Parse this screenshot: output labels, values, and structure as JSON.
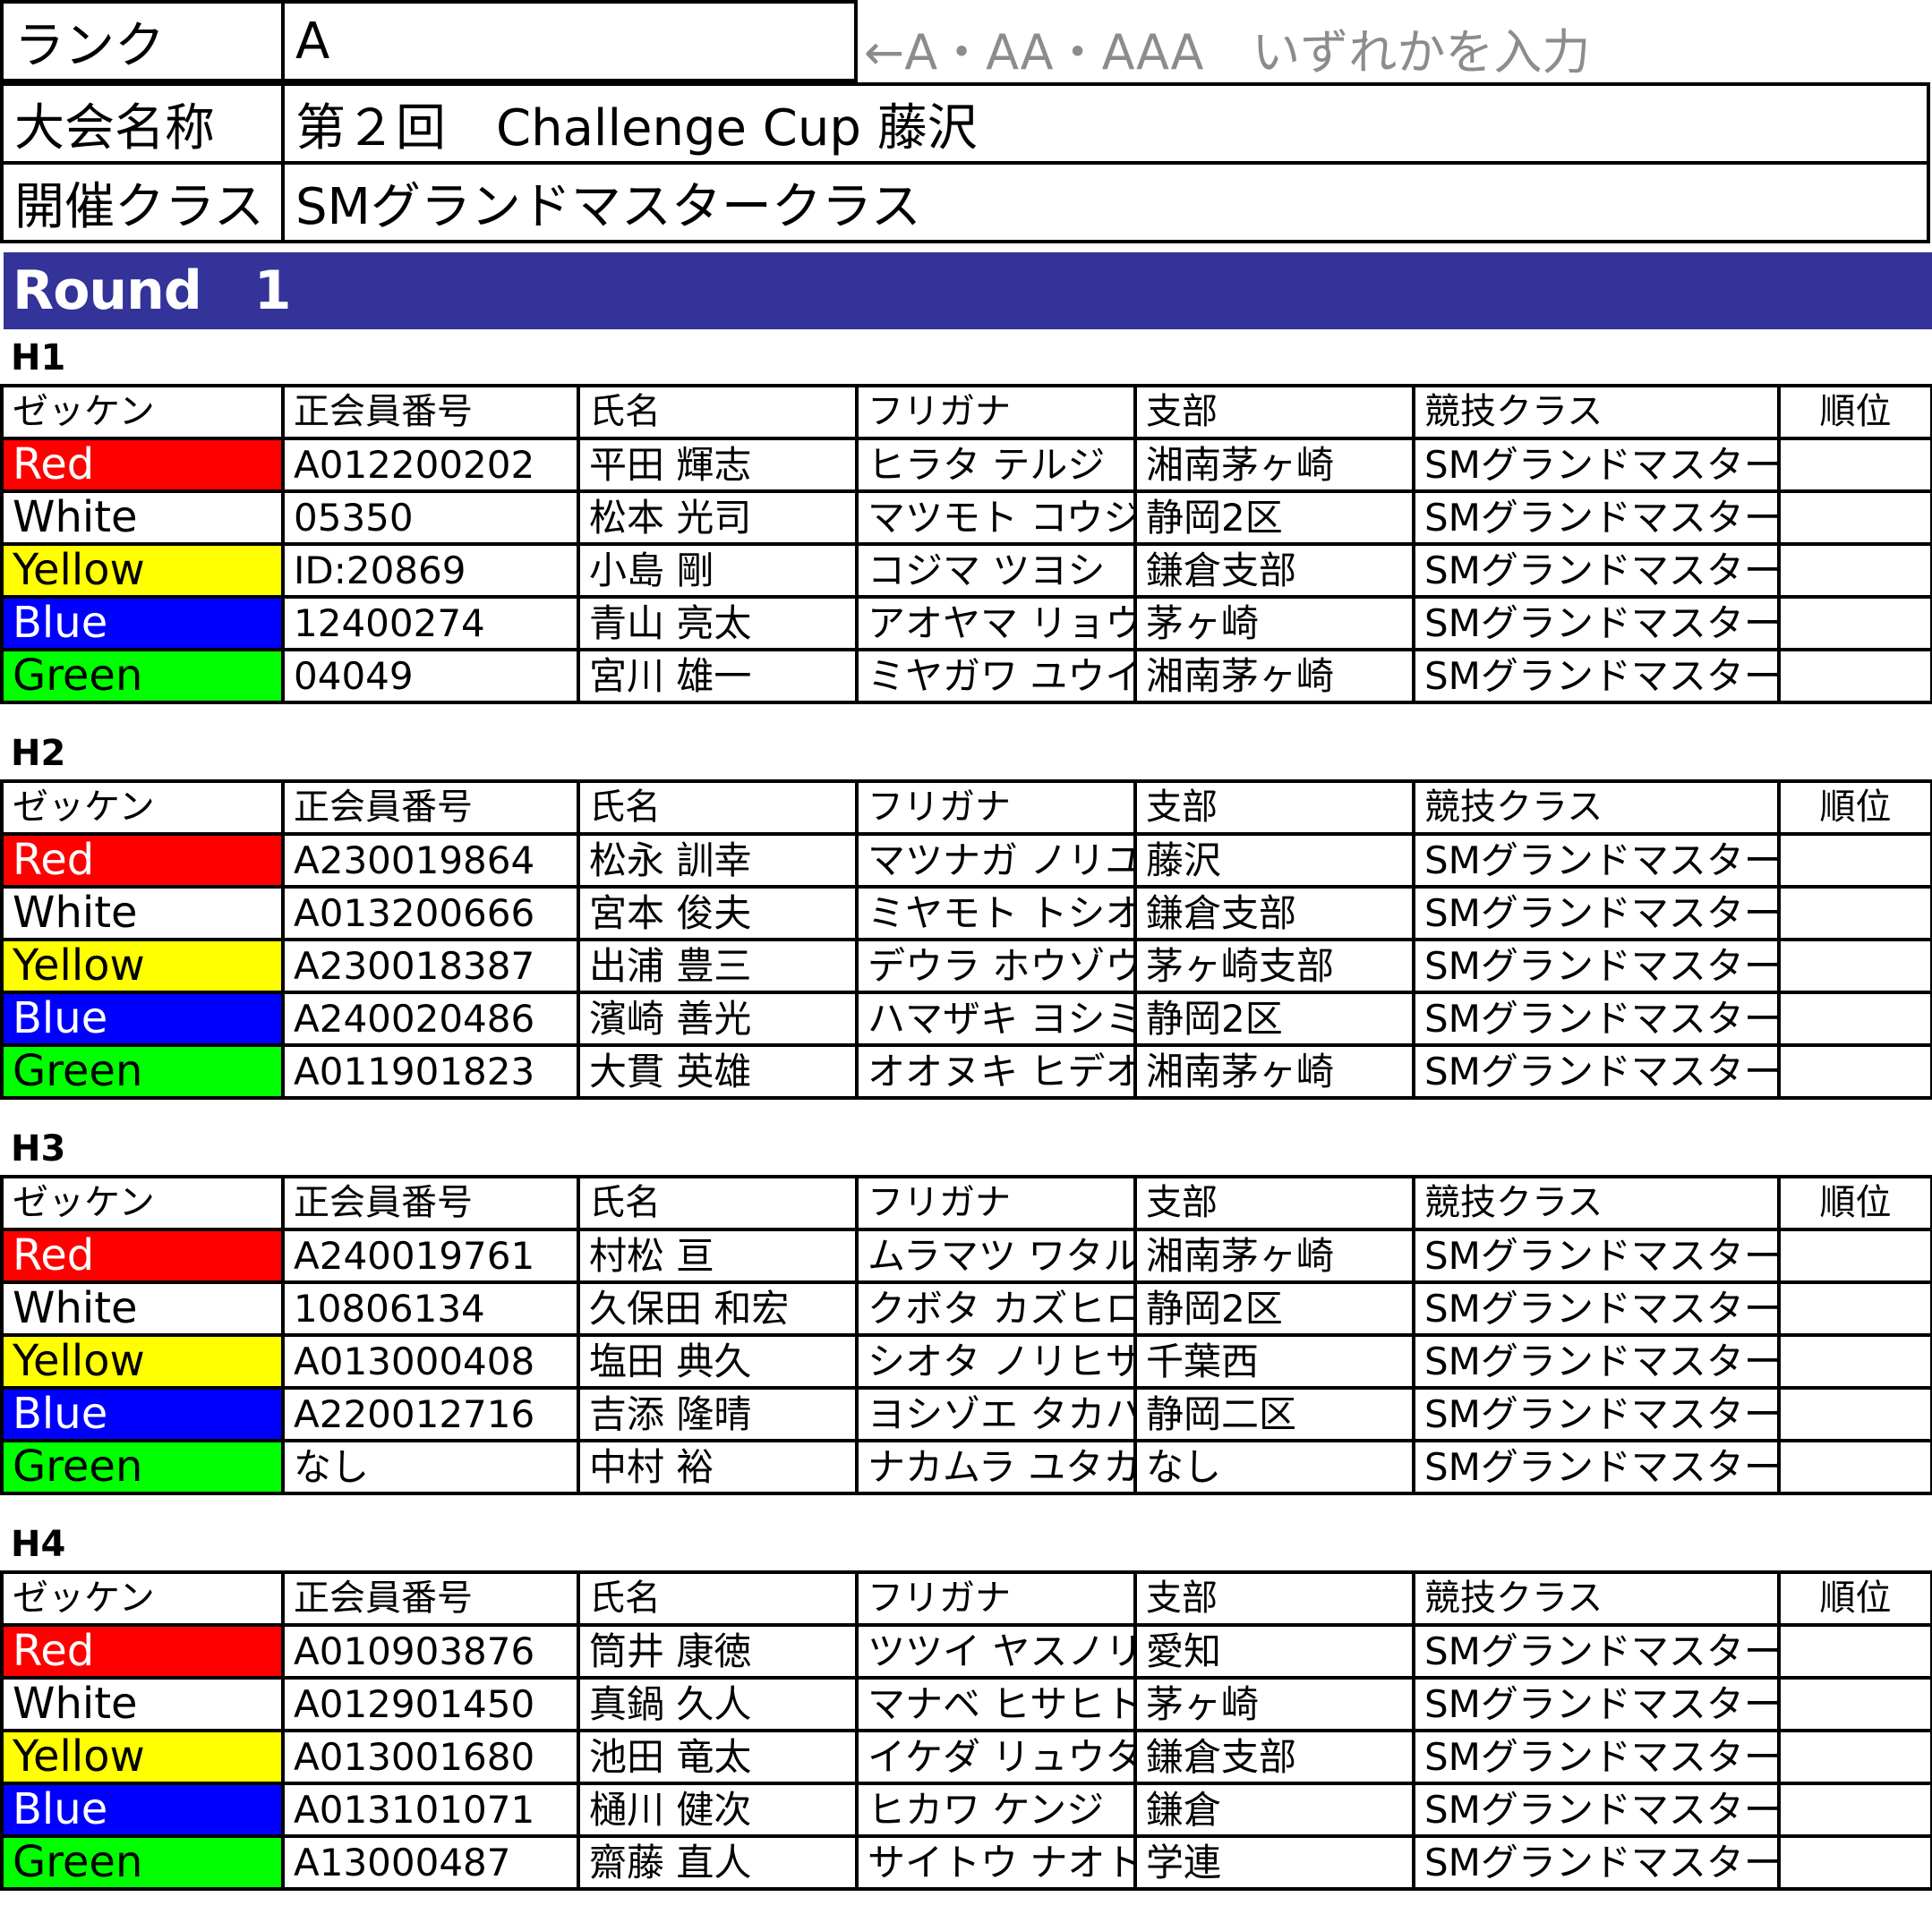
{
  "info": {
    "rank_label": "ランク",
    "rank_value": "A",
    "rank_note": "←A・AA・AAA　いずれかを入力",
    "event_label": "大会名称",
    "event_value": "第２回　Challenge Cup 藤沢",
    "class_label": "開催クラス",
    "class_value": "SMグランドマスタークラス"
  },
  "round_title": "Round　1",
  "columns": [
    "ゼッケン",
    "正会員番号",
    "氏名",
    "フリガナ",
    "支部",
    "競技クラス",
    "順位"
  ],
  "lane_colors": {
    "Red": "#ff0000",
    "White": "#ffffff",
    "Yellow": "#ffff00",
    "Blue": "#0000ff",
    "Green": "#00ff00"
  },
  "heats": [
    {
      "label": "H1",
      "rows": [
        {
          "lane": "Red",
          "member_no": "A012200202",
          "name": "平田 輝志",
          "furigana": "ヒラタ テルジ",
          "branch": "湘南茅ヶ崎",
          "class": "SMグランドマスター",
          "rank": ""
        },
        {
          "lane": "White",
          "member_no": "05350",
          "name": "松本 光司",
          "furigana": "マツモト コウジ",
          "branch": "静岡2区",
          "class": "SMグランドマスター",
          "rank": ""
        },
        {
          "lane": "Yellow",
          "member_no": "ID:20869",
          "name": "小島 剛",
          "furigana": "コジマ ツヨシ",
          "branch": "鎌倉支部",
          "class": "SMグランドマスター",
          "rank": ""
        },
        {
          "lane": "Blue",
          "member_no": "12400274",
          "name": "青山 亮太",
          "furigana": "アオヤマ リョウタ",
          "branch": "茅ヶ崎",
          "class": "SMグランドマスター",
          "rank": ""
        },
        {
          "lane": "Green",
          "member_no": "04049",
          "name": "宮川 雄一",
          "furigana": "ミヤガワ ユウイチ",
          "branch": "湘南茅ヶ崎",
          "class": "SMグランドマスター",
          "rank": ""
        }
      ]
    },
    {
      "label": "H2",
      "rows": [
        {
          "lane": "Red",
          "member_no": "A230019864",
          "name": "松永 訓幸",
          "furigana": "マツナガ ノリユキ",
          "branch": "藤沢",
          "class": "SMグランドマスター",
          "rank": ""
        },
        {
          "lane": "White",
          "member_no": "A013200666",
          "name": "宮本 俊夫",
          "furigana": "ミヤモト トシオ",
          "branch": "鎌倉支部",
          "class": "SMグランドマスター",
          "rank": ""
        },
        {
          "lane": "Yellow",
          "member_no": "A230018387",
          "name": "出浦 豊三",
          "furigana": "デウラ ホウゾウ",
          "branch": "茅ヶ崎支部",
          "class": "SMグランドマスター",
          "rank": ""
        },
        {
          "lane": "Blue",
          "member_no": "A240020486",
          "name": "濱崎 善光",
          "furigana": "ハマザキ ヨシミツ",
          "branch": "静岡2区",
          "class": "SMグランドマスター",
          "rank": ""
        },
        {
          "lane": "Green",
          "member_no": "A011901823",
          "name": "大貫 英雄",
          "furigana": "オオヌキ ヒデオ",
          "branch": "湘南茅ヶ崎",
          "class": "SMグランドマスター",
          "rank": ""
        }
      ]
    },
    {
      "label": "H3",
      "rows": [
        {
          "lane": "Red",
          "member_no": "A240019761",
          "name": "村松 亘",
          "furigana": "ムラマツ ワタル",
          "branch": "湘南茅ヶ崎",
          "class": "SMグランドマスター",
          "rank": ""
        },
        {
          "lane": "White",
          "member_no": "10806134",
          "name": "久保田 和宏",
          "furigana": "クボタ カズヒロ",
          "branch": "静岡2区",
          "class": "SMグランドマスター",
          "rank": ""
        },
        {
          "lane": "Yellow",
          "member_no": "A013000408",
          "name": "塩田 典久",
          "furigana": "シオタ ノリヒサ",
          "branch": "千葉西",
          "class": "SMグランドマスター",
          "rank": ""
        },
        {
          "lane": "Blue",
          "member_no": "A220012716",
          "name": "吉添 隆晴",
          "furigana": "ヨシゾエ タカハル",
          "branch": "静岡二区",
          "class": "SMグランドマスター",
          "rank": ""
        },
        {
          "lane": "Green",
          "member_no": "なし",
          "name": "中村 裕",
          "furigana": "ナカムラ ユタカ",
          "branch": "なし",
          "class": "SMグランドマスター",
          "rank": ""
        }
      ]
    },
    {
      "label": "H4",
      "rows": [
        {
          "lane": "Red",
          "member_no": "A010903876",
          "name": "筒井 康徳",
          "furigana": "ツツイ ヤスノリ",
          "branch": "愛知",
          "class": "SMグランドマスター",
          "rank": ""
        },
        {
          "lane": "White",
          "member_no": "A012901450",
          "name": "真鍋 久人",
          "furigana": "マナベ ヒサヒト",
          "branch": "茅ヶ崎",
          "class": "SMグランドマスター",
          "rank": ""
        },
        {
          "lane": "Yellow",
          "member_no": "A013001680",
          "name": "池田 竜太",
          "furigana": "イケダ リュウタ",
          "branch": "鎌倉支部",
          "class": "SMグランドマスター",
          "rank": ""
        },
        {
          "lane": "Blue",
          "member_no": "A013101071",
          "name": "樋川 健次",
          "furigana": "ヒカワ ケンジ",
          "branch": "鎌倉",
          "class": "SMグランドマスター",
          "rank": ""
        },
        {
          "lane": "Green",
          "member_no": "A13000487",
          "name": "齋藤 直人",
          "furigana": "サイトウ ナオト",
          "branch": "学連",
          "class": "SMグランドマスター",
          "rank": ""
        }
      ]
    }
  ]
}
